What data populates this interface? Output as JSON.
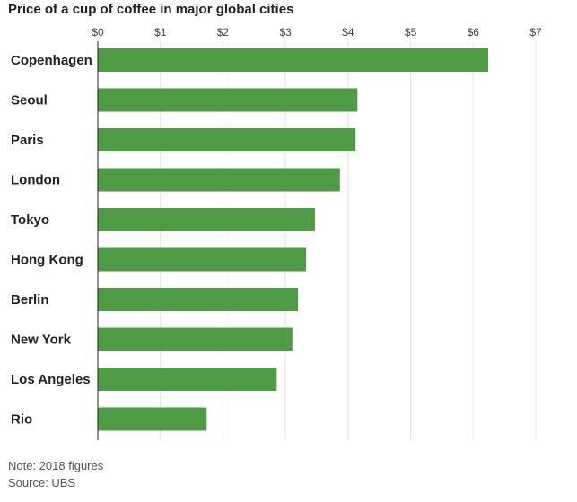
{
  "chart_data": {
    "type": "bar",
    "orientation": "horizontal",
    "title": "Price of a cup of coffee in major global cities",
    "categories": [
      "Copenhagen",
      "Seoul",
      "Paris",
      "London",
      "Tokyo",
      "Hong Kong",
      "Berlin",
      "New York",
      "Los Angeles",
      "Rio"
    ],
    "values": [
      6.24,
      4.15,
      4.12,
      3.87,
      3.47,
      3.33,
      3.2,
      3.11,
      2.86,
      1.74
    ],
    "xlim": [
      0,
      7
    ],
    "ticks": [
      0,
      1,
      2,
      3,
      4,
      5,
      6,
      7
    ],
    "tick_labels": [
      "$0",
      "$1",
      "$2",
      "$3",
      "$4",
      "$5",
      "$6",
      "$7"
    ],
    "xlabel": "",
    "ylabel": "",
    "axis_position": "top",
    "grid": true,
    "bar_color": "#4f9a45",
    "note": "Note: 2018 figures",
    "source": "Source: UBS"
  }
}
